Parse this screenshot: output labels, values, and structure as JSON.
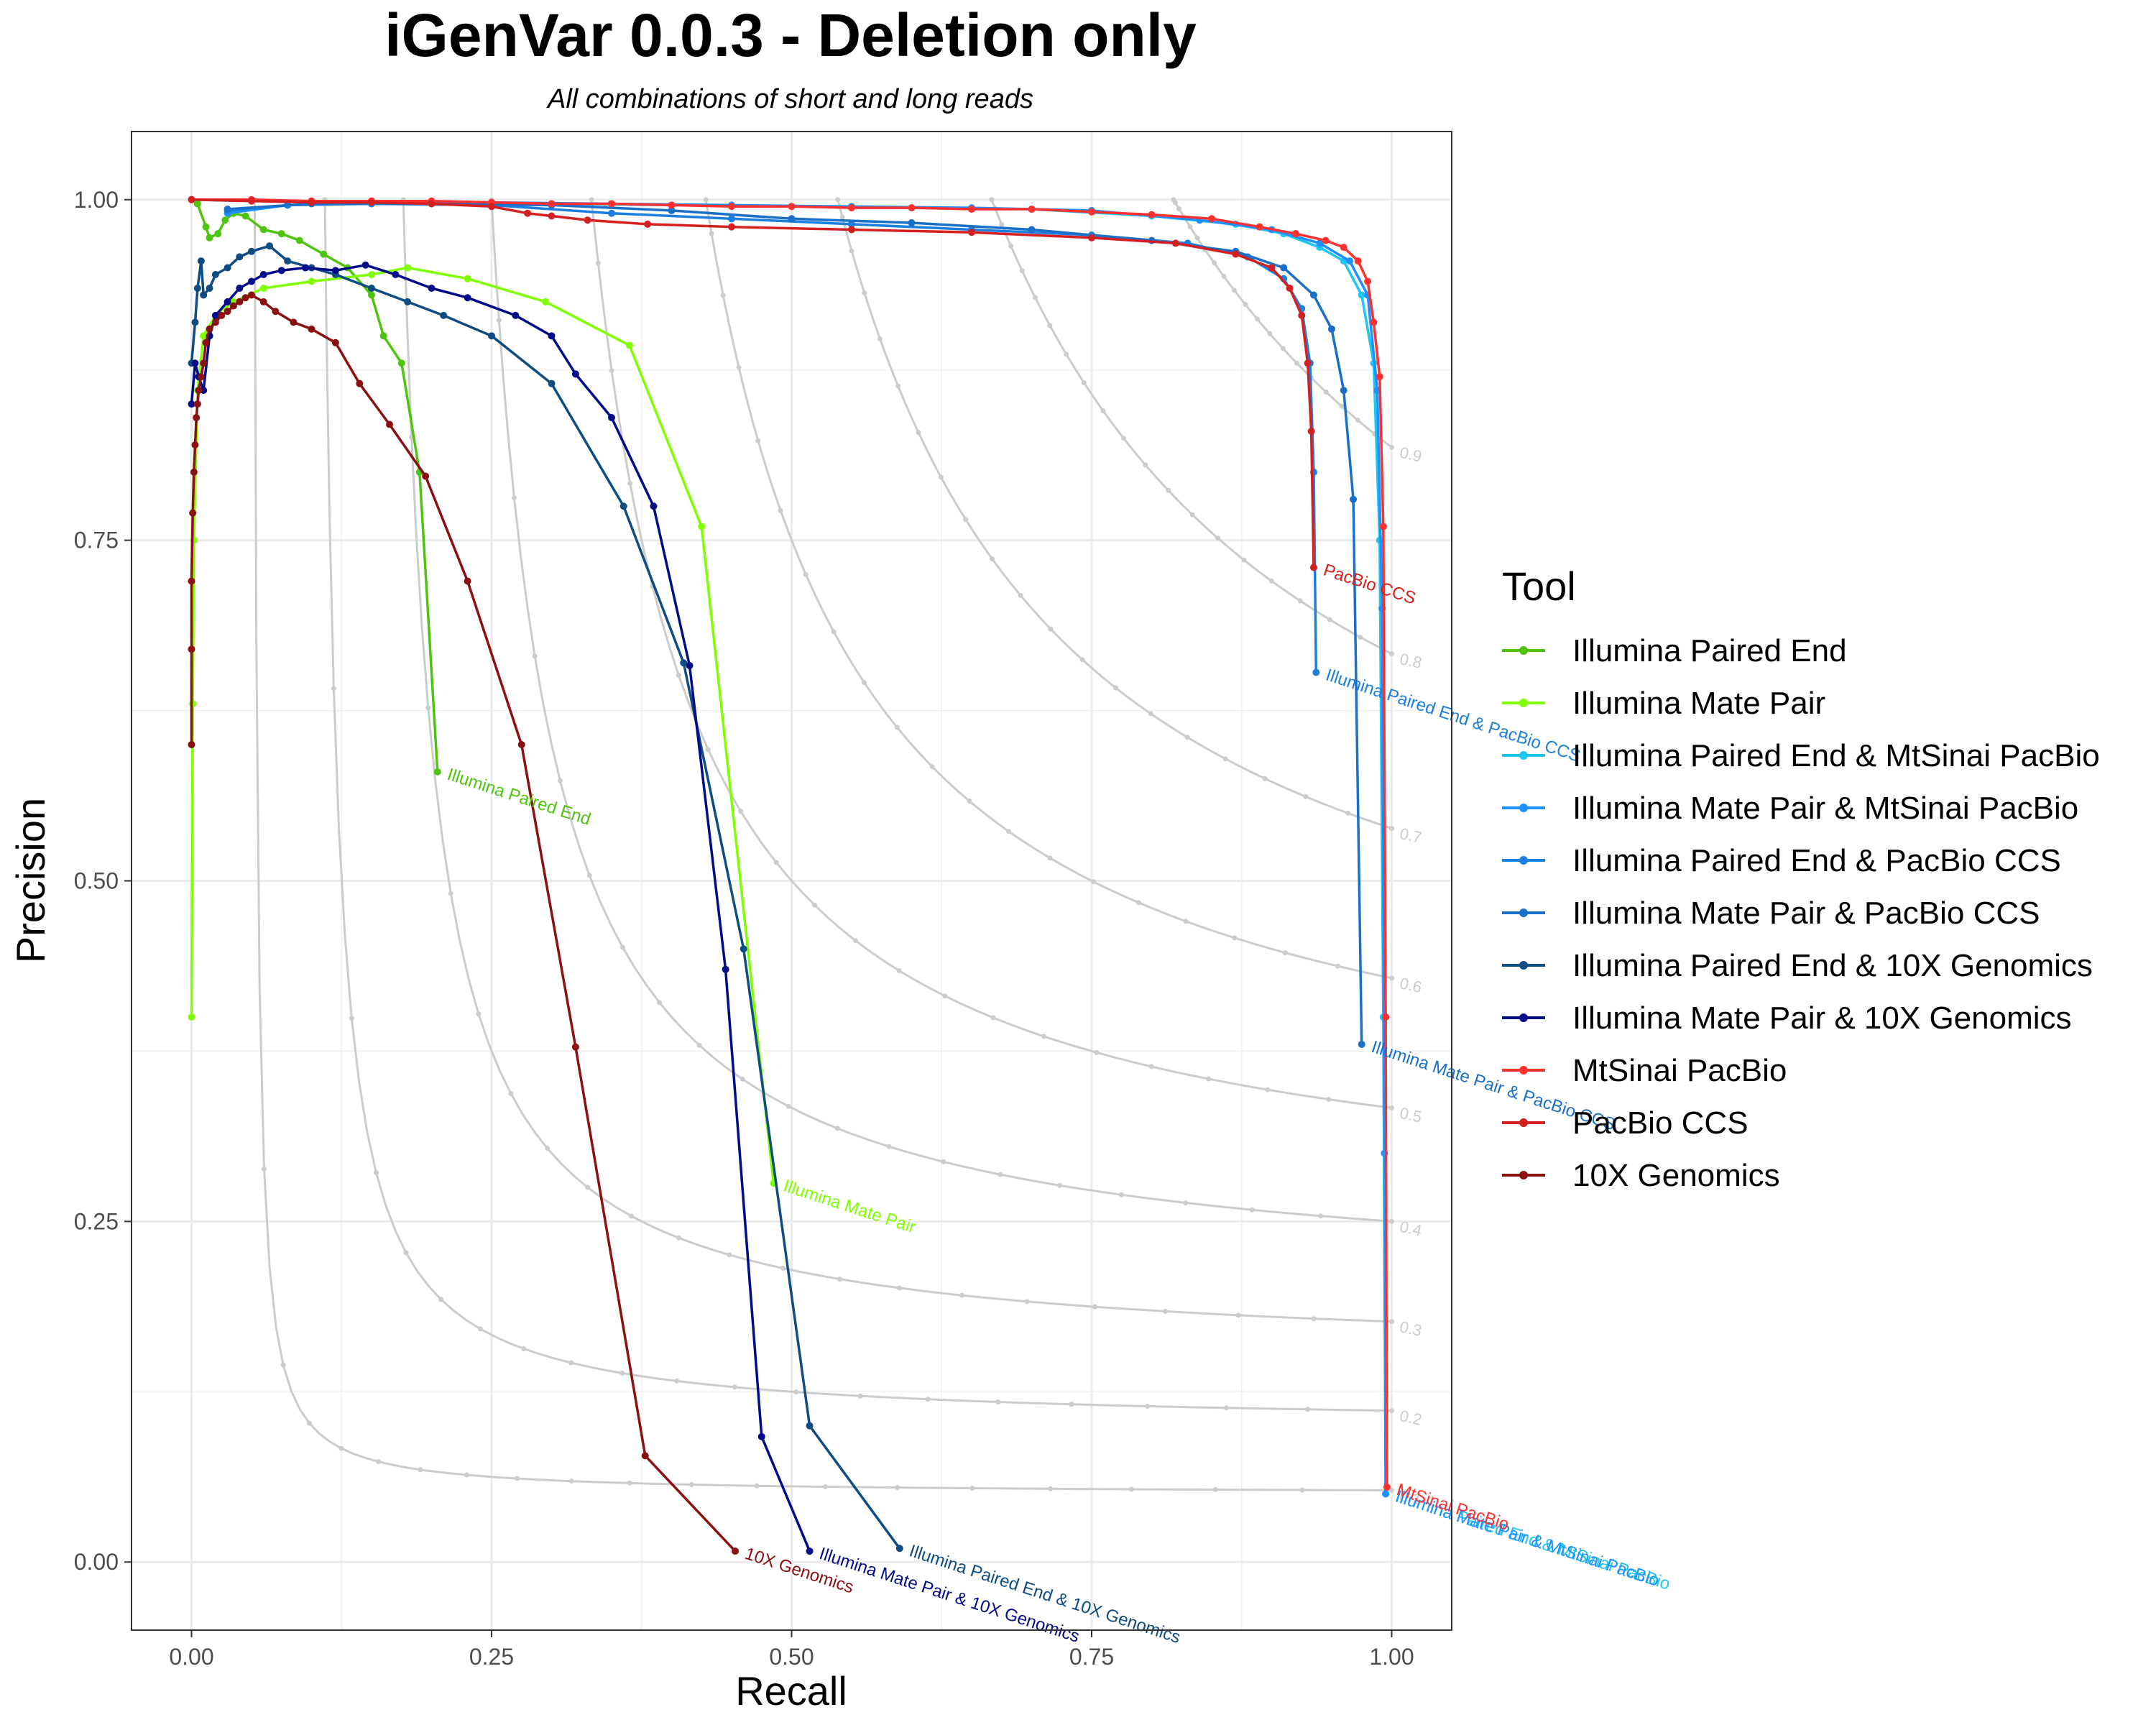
{
  "chart_data": {
    "type": "line",
    "title": "iGenVar 0.0.3 - Deletion only",
    "subtitle": "All combinations of short and long reads",
    "xlabel": "Recall",
    "ylabel": "Precision",
    "xlim": [
      -0.05,
      1.05
    ],
    "ylim": [
      -0.05,
      1.05
    ],
    "grid": true,
    "x_ticks": [
      0.0,
      0.25,
      0.5,
      0.75,
      1.0
    ],
    "x_tick_labels": [
      "0.00",
      "0.25",
      "0.50",
      "0.75",
      "1.00"
    ],
    "y_ticks": [
      0.0,
      0.25,
      0.5,
      0.75,
      1.0
    ],
    "y_tick_labels": [
      "0.00",
      "0.25",
      "0.50",
      "0.75",
      "1.00"
    ],
    "legend_title": "Tool",
    "legend_position": "right",
    "iso_f1_color": "#cccccc",
    "iso_f1_curves": [
      {
        "f1": 0.1,
        "label": "0.1"
      },
      {
        "f1": 0.2,
        "label": "0.2"
      },
      {
        "f1": 0.3,
        "label": "0.3"
      },
      {
        "f1": 0.4,
        "label": "0.4"
      },
      {
        "f1": 0.5,
        "label": "0.5"
      },
      {
        "f1": 0.6,
        "label": "0.6"
      },
      {
        "f1": 0.7,
        "label": "0.7"
      },
      {
        "f1": 0.8,
        "label": "0.8"
      },
      {
        "f1": 0.9,
        "label": "0.9"
      }
    ],
    "series": [
      {
        "name": "Illumina Paired End",
        "color": "#4fc40f",
        "end_label": "Illumina Paired End",
        "points": [
          [
            0.0,
            1.0
          ],
          [
            0.005,
            0.997
          ],
          [
            0.012,
            0.98
          ],
          [
            0.015,
            0.972
          ],
          [
            0.022,
            0.975
          ],
          [
            0.028,
            0.985
          ],
          [
            0.035,
            0.99
          ],
          [
            0.045,
            0.988
          ],
          [
            0.06,
            0.978
          ],
          [
            0.075,
            0.975
          ],
          [
            0.09,
            0.97
          ],
          [
            0.11,
            0.96
          ],
          [
            0.13,
            0.95
          ],
          [
            0.15,
            0.93
          ],
          [
            0.16,
            0.9
          ],
          [
            0.175,
            0.88
          ],
          [
            0.19,
            0.8
          ],
          [
            0.205,
            0.58
          ]
        ]
      },
      {
        "name": "Illumina Mate Pair",
        "color": "#7fff00",
        "end_label": "Illumina Mate Pair",
        "points": [
          [
            0.0,
            0.4
          ],
          [
            0.001,
            0.63
          ],
          [
            0.002,
            0.75
          ],
          [
            0.005,
            0.86
          ],
          [
            0.01,
            0.9
          ],
          [
            0.02,
            0.915
          ],
          [
            0.035,
            0.925
          ],
          [
            0.06,
            0.935
          ],
          [
            0.1,
            0.94
          ],
          [
            0.15,
            0.945
          ],
          [
            0.18,
            0.95
          ],
          [
            0.23,
            0.942
          ],
          [
            0.295,
            0.925
          ],
          [
            0.365,
            0.893
          ],
          [
            0.425,
            0.76
          ],
          [
            0.485,
            0.278
          ]
        ]
      },
      {
        "name": "Illumina Paired End & MtSinai PacBio",
        "color": "#1ec6f0",
        "end_label": "Illumina Paired End & MtSinai PacBio",
        "points": [
          [
            0.0,
            1.0
          ],
          [
            0.05,
            0.999
          ],
          [
            0.1,
            0.999
          ],
          [
            0.2,
            0.998
          ],
          [
            0.3,
            0.997
          ],
          [
            0.4,
            0.996
          ],
          [
            0.5,
            0.995
          ],
          [
            0.6,
            0.994
          ],
          [
            0.7,
            0.993
          ],
          [
            0.8,
            0.988
          ],
          [
            0.87,
            0.982
          ],
          [
            0.91,
            0.975
          ],
          [
            0.94,
            0.965
          ],
          [
            0.96,
            0.955
          ],
          [
            0.975,
            0.93
          ],
          [
            0.985,
            0.88
          ],
          [
            0.99,
            0.75
          ],
          [
            0.993,
            0.4
          ],
          [
            0.995,
            0.05
          ]
        ]
      },
      {
        "name": "Illumina Mate Pair & MtSinai PacBio",
        "color": "#1e90ff",
        "end_label": "Illumina Mate Pair & MtSinai PacBio",
        "points": [
          [
            0.03,
            0.99
          ],
          [
            0.08,
            0.996
          ],
          [
            0.15,
            0.998
          ],
          [
            0.25,
            0.998
          ],
          [
            0.35,
            0.997
          ],
          [
            0.45,
            0.996
          ],
          [
            0.55,
            0.995
          ],
          [
            0.65,
            0.994
          ],
          [
            0.75,
            0.992
          ],
          [
            0.84,
            0.985
          ],
          [
            0.9,
            0.978
          ],
          [
            0.94,
            0.968
          ],
          [
            0.965,
            0.955
          ],
          [
            0.98,
            0.93
          ],
          [
            0.988,
            0.86
          ],
          [
            0.992,
            0.7
          ],
          [
            0.994,
            0.3
          ],
          [
            0.995,
            0.05
          ]
        ]
      },
      {
        "name": "Illumina Paired End & PacBio CCS",
        "color": "#1c7fe0",
        "end_label": "Illumina Paired End & PacBio CCS",
        "points": [
          [
            0.03,
            0.992
          ],
          [
            0.08,
            0.996
          ],
          [
            0.15,
            0.997
          ],
          [
            0.25,
            0.996
          ],
          [
            0.35,
            0.99
          ],
          [
            0.45,
            0.986
          ],
          [
            0.55,
            0.982
          ],
          [
            0.65,
            0.978
          ],
          [
            0.75,
            0.974
          ],
          [
            0.83,
            0.968
          ],
          [
            0.88,
            0.958
          ],
          [
            0.91,
            0.942
          ],
          [
            0.925,
            0.92
          ],
          [
            0.932,
            0.88
          ],
          [
            0.935,
            0.8
          ],
          [
            0.937,
            0.653
          ]
        ]
      },
      {
        "name": "Illumina Mate Pair & PacBio CCS",
        "color": "#1a70c8",
        "end_label": "Illumina Mate Pair & PacBio CCS",
        "points": [
          [
            0.03,
            0.993
          ],
          [
            0.1,
            0.997
          ],
          [
            0.2,
            0.997
          ],
          [
            0.3,
            0.996
          ],
          [
            0.4,
            0.992
          ],
          [
            0.5,
            0.986
          ],
          [
            0.6,
            0.983
          ],
          [
            0.7,
            0.978
          ],
          [
            0.8,
            0.97
          ],
          [
            0.87,
            0.962
          ],
          [
            0.91,
            0.95
          ],
          [
            0.935,
            0.93
          ],
          [
            0.95,
            0.905
          ],
          [
            0.96,
            0.86
          ],
          [
            0.968,
            0.78
          ],
          [
            0.975,
            0.38
          ]
        ]
      },
      {
        "name": "Illumina Paired End & 10X Genomics",
        "color": "#0f4c81",
        "end_label": "Illumina Paired End & 10X Genomics",
        "points": [
          [
            0.0,
            0.88
          ],
          [
            0.003,
            0.91
          ],
          [
            0.005,
            0.935
          ],
          [
            0.008,
            0.955
          ],
          [
            0.01,
            0.93
          ],
          [
            0.015,
            0.935
          ],
          [
            0.02,
            0.945
          ],
          [
            0.03,
            0.95
          ],
          [
            0.04,
            0.958
          ],
          [
            0.05,
            0.962
          ],
          [
            0.065,
            0.966
          ],
          [
            0.08,
            0.955
          ],
          [
            0.1,
            0.95
          ],
          [
            0.12,
            0.945
          ],
          [
            0.15,
            0.935
          ],
          [
            0.18,
            0.925
          ],
          [
            0.21,
            0.915
          ],
          [
            0.25,
            0.9
          ],
          [
            0.3,
            0.865
          ],
          [
            0.36,
            0.775
          ],
          [
            0.41,
            0.66
          ],
          [
            0.46,
            0.45
          ],
          [
            0.515,
            0.1
          ],
          [
            0.59,
            0.01
          ]
        ]
      },
      {
        "name": "Illumina Mate Pair & 10X Genomics",
        "color": "#000c8a",
        "end_label": "Illumina Mate Pair & 10X Genomics",
        "points": [
          [
            0.0,
            0.85
          ],
          [
            0.003,
            0.88
          ],
          [
            0.006,
            0.87
          ],
          [
            0.01,
            0.86
          ],
          [
            0.015,
            0.9
          ],
          [
            0.02,
            0.915
          ],
          [
            0.03,
            0.925
          ],
          [
            0.04,
            0.935
          ],
          [
            0.05,
            0.94
          ],
          [
            0.06,
            0.945
          ],
          [
            0.075,
            0.948
          ],
          [
            0.095,
            0.95
          ],
          [
            0.12,
            0.948
          ],
          [
            0.145,
            0.952
          ],
          [
            0.17,
            0.945
          ],
          [
            0.2,
            0.935
          ],
          [
            0.23,
            0.928
          ],
          [
            0.27,
            0.915
          ],
          [
            0.3,
            0.9
          ],
          [
            0.32,
            0.872
          ],
          [
            0.35,
            0.84
          ],
          [
            0.385,
            0.775
          ],
          [
            0.415,
            0.658
          ],
          [
            0.445,
            0.435
          ],
          [
            0.475,
            0.092
          ],
          [
            0.515,
            0.008
          ]
        ]
      },
      {
        "name": "MtSinai PacBio",
        "color": "#ff3030",
        "end_label": "MtSinai PacBio",
        "points": [
          [
            0.0,
            1.0
          ],
          [
            0.05,
            1.0
          ],
          [
            0.1,
            0.999
          ],
          [
            0.15,
            0.999
          ],
          [
            0.2,
            0.999
          ],
          [
            0.25,
            0.998
          ],
          [
            0.3,
            0.997
          ],
          [
            0.35,
            0.997
          ],
          [
            0.4,
            0.996
          ],
          [
            0.45,
            0.995
          ],
          [
            0.5,
            0.995
          ],
          [
            0.55,
            0.994
          ],
          [
            0.6,
            0.994
          ],
          [
            0.65,
            0.993
          ],
          [
            0.7,
            0.993
          ],
          [
            0.75,
            0.991
          ],
          [
            0.8,
            0.989
          ],
          [
            0.85,
            0.986
          ],
          [
            0.89,
            0.98
          ],
          [
            0.92,
            0.975
          ],
          [
            0.945,
            0.97
          ],
          [
            0.96,
            0.965
          ],
          [
            0.972,
            0.955
          ],
          [
            0.98,
            0.94
          ],
          [
            0.985,
            0.91
          ],
          [
            0.99,
            0.87
          ],
          [
            0.993,
            0.76
          ],
          [
            0.995,
            0.4
          ],
          [
            0.996,
            0.055
          ]
        ]
      },
      {
        "name": "PacBio CCS",
        "color": "#d42020",
        "end_label": "PacBio CCS",
        "points": [
          [
            0.0,
            1.0
          ],
          [
            0.05,
            0.999
          ],
          [
            0.1,
            0.998
          ],
          [
            0.15,
            0.998
          ],
          [
            0.2,
            0.997
          ],
          [
            0.25,
            0.995
          ],
          [
            0.28,
            0.99
          ],
          [
            0.3,
            0.988
          ],
          [
            0.33,
            0.985
          ],
          [
            0.38,
            0.982
          ],
          [
            0.45,
            0.98
          ],
          [
            0.55,
            0.978
          ],
          [
            0.65,
            0.976
          ],
          [
            0.75,
            0.972
          ],
          [
            0.82,
            0.968
          ],
          [
            0.87,
            0.96
          ],
          [
            0.9,
            0.95
          ],
          [
            0.915,
            0.935
          ],
          [
            0.925,
            0.915
          ],
          [
            0.93,
            0.88
          ],
          [
            0.933,
            0.83
          ],
          [
            0.935,
            0.73
          ]
        ]
      },
      {
        "name": "10X Genomics",
        "color": "#8b1010",
        "end_label": "10X Genomics",
        "points": [
          [
            0.0,
            0.6
          ],
          [
            0.0,
            0.67
          ],
          [
            0.0,
            0.72
          ],
          [
            0.001,
            0.77
          ],
          [
            0.002,
            0.8
          ],
          [
            0.003,
            0.82
          ],
          [
            0.004,
            0.84
          ],
          [
            0.005,
            0.85
          ],
          [
            0.006,
            0.86
          ],
          [
            0.008,
            0.87
          ],
          [
            0.01,
            0.88
          ],
          [
            0.012,
            0.895
          ],
          [
            0.015,
            0.905
          ],
          [
            0.02,
            0.91
          ],
          [
            0.025,
            0.915
          ],
          [
            0.03,
            0.918
          ],
          [
            0.035,
            0.922
          ],
          [
            0.04,
            0.925
          ],
          [
            0.045,
            0.928
          ],
          [
            0.05,
            0.93
          ],
          [
            0.06,
            0.925
          ],
          [
            0.07,
            0.918
          ],
          [
            0.085,
            0.91
          ],
          [
            0.1,
            0.905
          ],
          [
            0.12,
            0.895
          ],
          [
            0.14,
            0.865
          ],
          [
            0.165,
            0.835
          ],
          [
            0.195,
            0.797
          ],
          [
            0.23,
            0.72
          ],
          [
            0.275,
            0.6
          ],
          [
            0.32,
            0.378
          ],
          [
            0.378,
            0.078
          ],
          [
            0.453,
            0.008
          ]
        ]
      }
    ]
  }
}
